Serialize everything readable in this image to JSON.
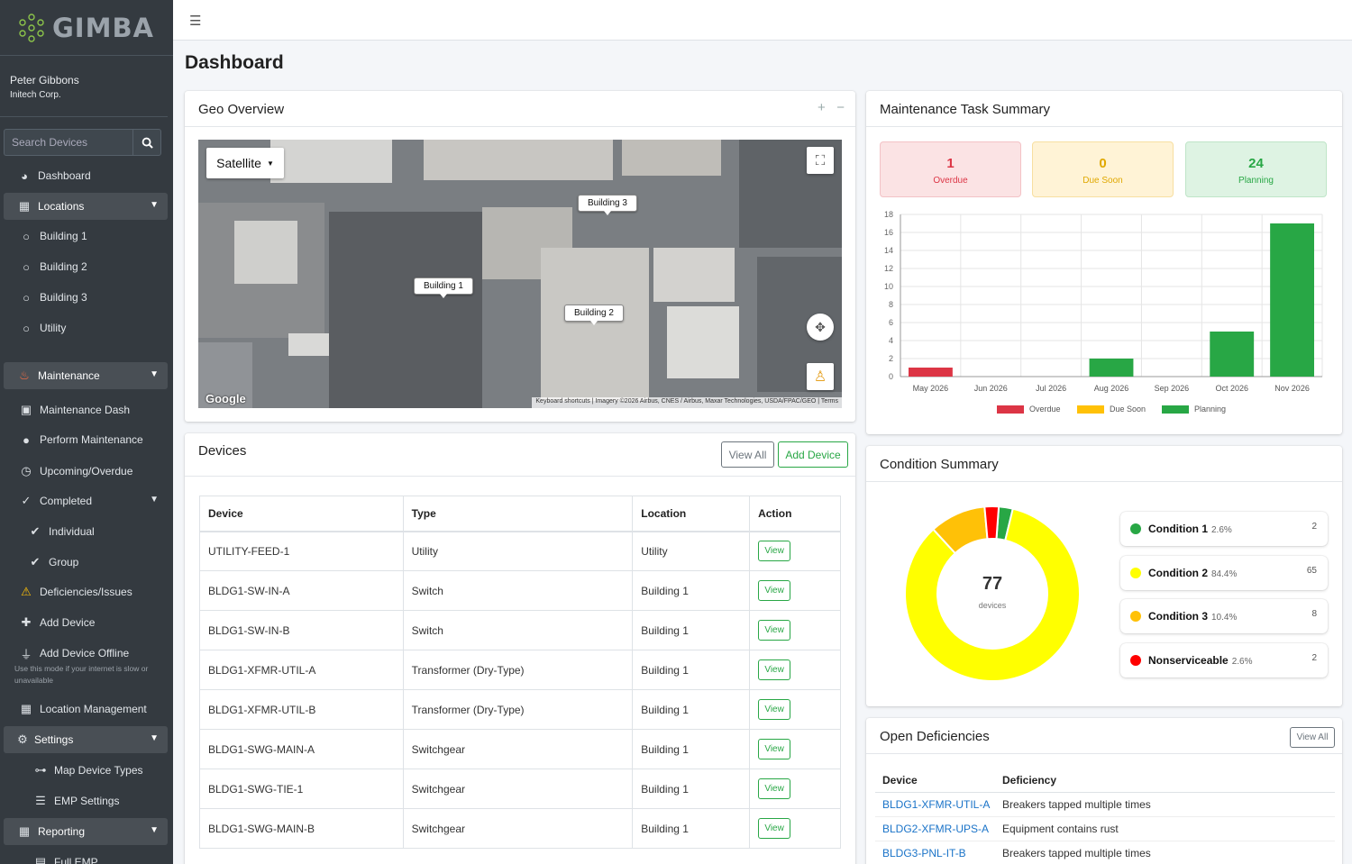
{
  "brand": {
    "name": "GIMBA"
  },
  "user": {
    "name": "Peter Gibbons",
    "org": "Initech Corp."
  },
  "search": {
    "placeholder": "Search Devices"
  },
  "sidebar": {
    "dashboard": "Dashboard",
    "locations": "Locations",
    "building1": "Building 1",
    "building2": "Building 2",
    "building3": "Building 3",
    "utility": "Utility",
    "maintenance": "Maintenance",
    "maintenance_dash": "Maintenance Dash",
    "perform_maintenance": "Perform Maintenance",
    "upcoming_overdue": "Upcoming/Overdue",
    "completed": "Completed",
    "individual": "Individual",
    "group": "Group",
    "deficiencies": "Deficiencies/Issues",
    "add_device": "Add Device",
    "add_device_offline": "Add Device Offline",
    "offline_hint": "Use this mode if your internet is slow or unavailable",
    "location_management": "Location Management",
    "settings": "Settings",
    "map_device_types": "Map Device Types",
    "emp_settings": "EMP Settings",
    "reporting": "Reporting",
    "full_emp": "Full EMP"
  },
  "page": {
    "title": "Dashboard"
  },
  "geo": {
    "title": "Geo Overview",
    "map_type": "Satellite",
    "labels": [
      "Building 1",
      "Building 2",
      "Building 3"
    ],
    "google": "Google",
    "footer": "Keyboard shortcuts  |  Imagery ©2026 Airbus, CNES / Airbus, Maxar Technologies, USDA/FPAC/GEO  |  Terms"
  },
  "devices": {
    "title": "Devices",
    "view_all": "View All",
    "add_device": "Add Device",
    "columns": [
      "Device",
      "Type",
      "Location",
      "Action"
    ],
    "action_label": "View",
    "rows": [
      [
        "UTILITY-FEED-1",
        "Utility",
        "Utility"
      ],
      [
        "BLDG1-SW-IN-A",
        "Switch",
        "Building 1"
      ],
      [
        "BLDG1-SW-IN-B",
        "Switch",
        "Building 1"
      ],
      [
        "BLDG1-XFMR-UTIL-A",
        "Transformer (Dry-Type)",
        "Building 1"
      ],
      [
        "BLDG1-XFMR-UTIL-B",
        "Transformer (Dry-Type)",
        "Building 1"
      ],
      [
        "BLDG1-SWG-MAIN-A",
        "Switchgear",
        "Building 1"
      ],
      [
        "BLDG1-SWG-TIE-1",
        "Switchgear",
        "Building 1"
      ],
      [
        "BLDG1-SWG-MAIN-B",
        "Switchgear",
        "Building 1"
      ]
    ]
  },
  "maintenance": {
    "title": "Maintenance Task Summary",
    "stats": {
      "overdue": {
        "value": "1",
        "label": "Overdue"
      },
      "due_soon": {
        "value": "0",
        "label": "Due Soon"
      },
      "planning": {
        "value": "24",
        "label": "Planning"
      }
    }
  },
  "chart_data": {
    "type": "bar",
    "categories": [
      "May 2026",
      "Jun 2026",
      "Jul 2026",
      "Aug 2026",
      "Sep 2026",
      "Oct 2026",
      "Nov 2026"
    ],
    "series": [
      {
        "name": "Overdue",
        "color": "#dc3545",
        "values": [
          1,
          0,
          0,
          0,
          0,
          0,
          0
        ]
      },
      {
        "name": "Due Soon",
        "color": "#ffc107",
        "values": [
          0,
          0,
          0,
          0,
          0,
          0,
          0
        ]
      },
      {
        "name": "Planning",
        "color": "#28a745",
        "values": [
          0,
          0,
          0,
          2,
          0,
          5,
          17
        ]
      }
    ],
    "ylim": [
      0,
      18
    ],
    "yticks": [
      0,
      2,
      4,
      6,
      8,
      10,
      12,
      14,
      16,
      18
    ],
    "grid": true,
    "legend": "bottom"
  },
  "condition": {
    "title": "Condition Summary",
    "total": "77",
    "total_label": "devices",
    "items": [
      {
        "name": "Condition 1",
        "pct": "2.6%",
        "count": "2",
        "value": 2,
        "color": "#28a745"
      },
      {
        "name": "Condition 2",
        "pct": "84.4%",
        "count": "65",
        "value": 65,
        "color": "#ffff00"
      },
      {
        "name": "Condition 3",
        "pct": "10.4%",
        "count": "8",
        "value": 8,
        "color": "#ffc107"
      },
      {
        "name": "Nonserviceable",
        "pct": "2.6%",
        "count": "2",
        "value": 2,
        "color": "#ff0000"
      }
    ]
  },
  "deficiencies": {
    "title": "Open Deficiencies",
    "view_all": "View All",
    "columns": [
      "Device",
      "Deficiency"
    ],
    "rows": [
      [
        "BLDG1-XFMR-UTIL-A",
        "Breakers tapped multiple times"
      ],
      [
        "BLDG2-XFMR-UPS-A",
        "Equipment contains rust"
      ],
      [
        "BLDG3-PNL-IT-B",
        "Breakers tapped multiple times"
      ]
    ]
  }
}
